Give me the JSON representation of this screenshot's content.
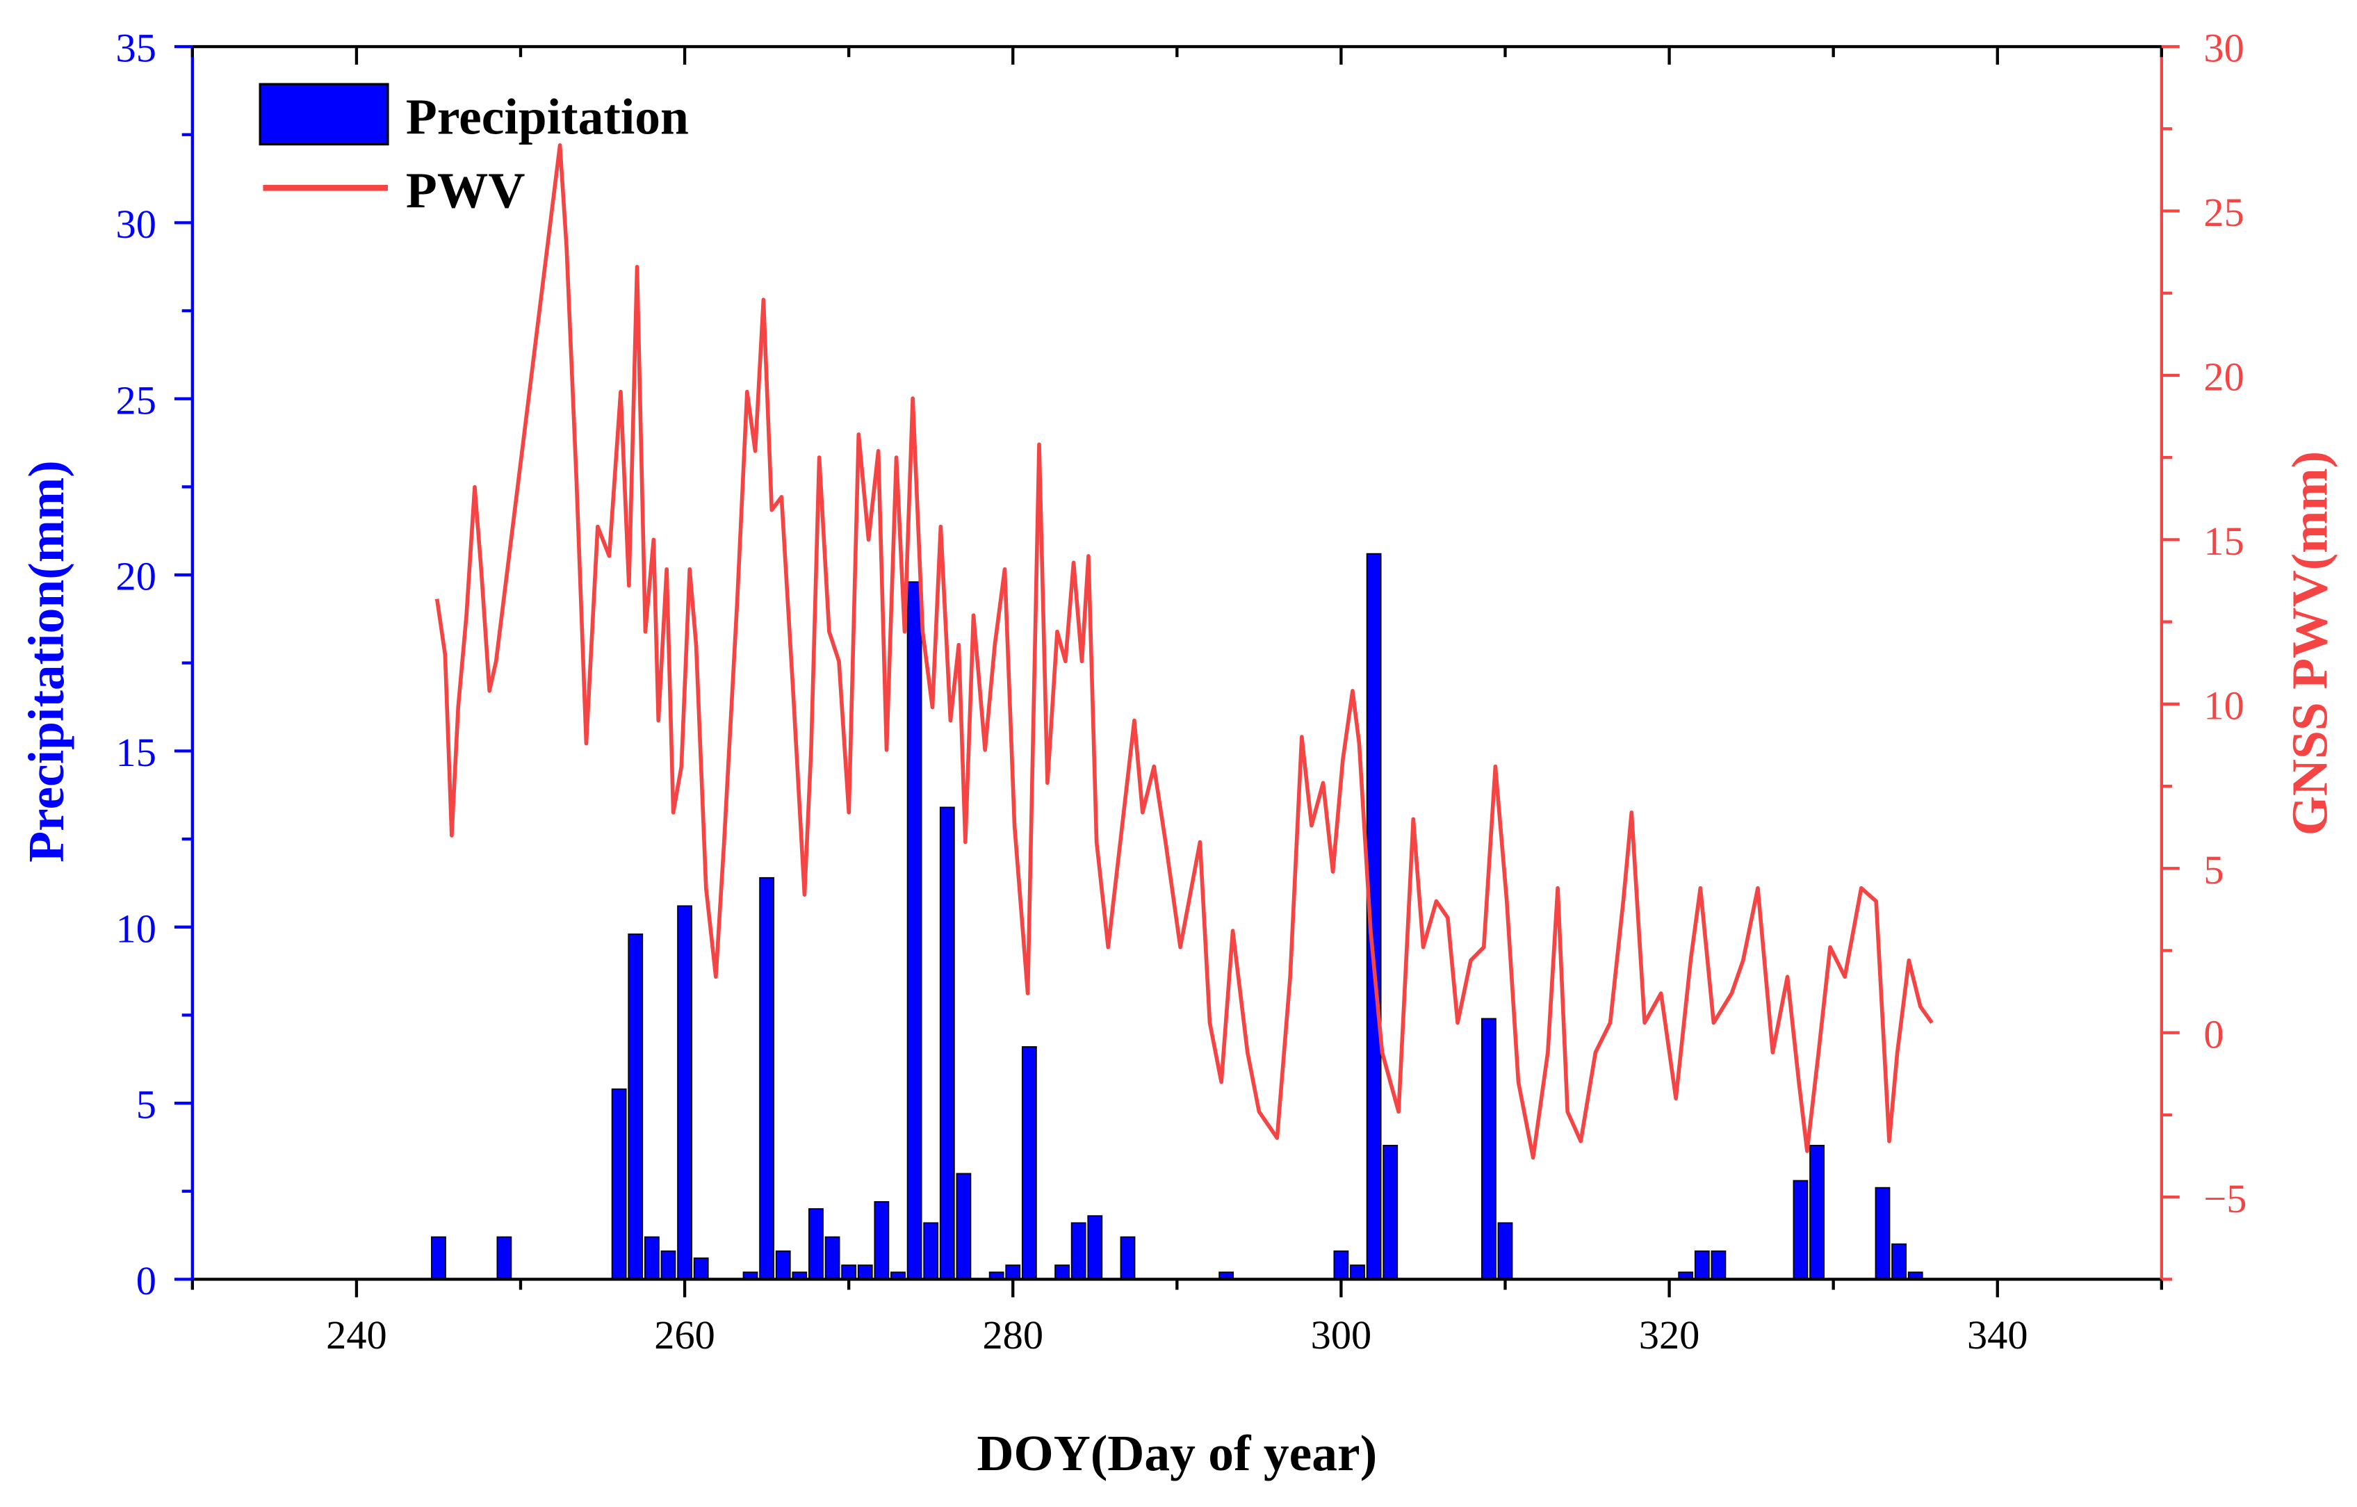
{
  "chart_data": {
    "type": "bar+line",
    "xlabel": "DOY(Day of year)",
    "ylabel_left": "Precipitation(mm)",
    "ylabel_right": "GNSS PWV(mm)",
    "xlim": [
      230,
      350
    ],
    "ylim_left": [
      0,
      35
    ],
    "ylim_right": [
      -7.5,
      30
    ],
    "x_ticks": [
      240,
      260,
      280,
      300,
      320,
      340
    ],
    "y_left_ticks": [
      0,
      5,
      10,
      15,
      20,
      25,
      30,
      35
    ],
    "y_right_ticks": [
      -5,
      0,
      5,
      10,
      15,
      20,
      25,
      30
    ],
    "grid": false,
    "legend": {
      "position": "top-left",
      "entries": [
        "Precipitation",
        "PWV"
      ]
    },
    "colors": {
      "precipitation": "#0000ff",
      "pwv": "#f44444",
      "left_axis": "#0000ff",
      "right_axis": "#f44444"
    },
    "series": [
      {
        "name": "Precipitation",
        "type": "bar",
        "axis": "left",
        "x": [
          245,
          249,
          256,
          257,
          258,
          259,
          260,
          261,
          264,
          265,
          266,
          267,
          268,
          269,
          270,
          271,
          272,
          273,
          274,
          275,
          276,
          277,
          279,
          280,
          281,
          283,
          284,
          285,
          287,
          293,
          300,
          301,
          302,
          303,
          309,
          310,
          321,
          322,
          323,
          328,
          329,
          333,
          334,
          335
        ],
        "values": [
          1.2,
          1.2,
          5.4,
          9.8,
          1.2,
          0.8,
          10.6,
          0.6,
          0.2,
          11.4,
          0.8,
          0.2,
          2.0,
          1.2,
          0.4,
          0.4,
          2.2,
          0.2,
          19.8,
          1.6,
          13.4,
          3.0,
          0.2,
          0.4,
          6.6,
          0.4,
          1.6,
          1.8,
          1.2,
          0.2,
          0.8,
          0.4,
          20.6,
          3.8,
          7.4,
          1.6,
          0.2,
          0.8,
          0.8,
          2.8,
          3.8,
          2.6,
          1.0,
          0.2
        ]
      },
      {
        "name": "PWV",
        "type": "line",
        "axis": "right",
        "x": [
          244.9,
          245.4,
          245.8,
          246.2,
          246.7,
          247.2,
          247.6,
          248.1,
          248.5,
          252.4,
          252.8,
          253.4,
          254.0,
          254.7,
          255.4,
          256.1,
          256.6,
          257.1,
          257.6,
          258.1,
          258.4,
          258.9,
          259.3,
          259.8,
          260.3,
          260.7,
          261.3,
          261.9,
          262.4,
          263.2,
          263.8,
          264.3,
          264.8,
          265.3,
          265.9,
          266.6,
          267.3,
          267.7,
          268.2,
          268.8,
          269.4,
          270.0,
          270.6,
          271.2,
          271.8,
          272.3,
          272.9,
          273.4,
          273.9,
          274.5,
          275.1,
          275.6,
          276.2,
          276.7,
          277.1,
          277.6,
          278.3,
          278.9,
          279.5,
          280.1,
          280.9,
          281.6,
          282.1,
          282.7,
          283.2,
          283.7,
          284.2,
          284.6,
          285.1,
          285.8,
          287.4,
          287.9,
          288.6,
          289.3,
          290.2,
          291.4,
          292.0,
          292.7,
          293.4,
          294.3,
          295.0,
          296.1,
          296.9,
          297.6,
          298.2,
          298.9,
          299.5,
          300.1,
          300.7,
          301.1,
          301.8,
          302.5,
          303.5,
          304.4,
          305.0,
          305.8,
          306.5,
          307.1,
          307.9,
          308.7,
          309.4,
          310.1,
          310.8,
          311.7,
          312.6,
          313.2,
          313.8,
          314.6,
          315.5,
          316.4,
          317.2,
          317.7,
          318.5,
          319.5,
          320.4,
          321.3,
          321.9,
          322.7,
          323.8,
          324.5,
          325.4,
          326.3,
          327.2,
          327.9,
          328.4,
          329.1,
          329.8,
          330.7,
          331.7,
          332.6,
          333.4,
          333.9,
          334.6,
          335.3,
          336.0
        ],
        "values": [
          13.2,
          11.5,
          6.0,
          9.9,
          12.7,
          16.6,
          14.1,
          10.4,
          11.3,
          27.0,
          23.9,
          16.8,
          8.8,
          15.4,
          14.5,
          19.5,
          13.6,
          23.3,
          12.2,
          15.0,
          9.5,
          14.1,
          6.7,
          8.1,
          14.1,
          11.8,
          4.4,
          1.7,
          5.8,
          13.1,
          19.5,
          17.7,
          22.3,
          15.9,
          16.3,
          10.4,
          4.2,
          8.6,
          17.5,
          12.2,
          11.3,
          6.7,
          18.2,
          15.0,
          17.7,
          8.6,
          17.5,
          12.2,
          19.3,
          12.2,
          9.9,
          15.4,
          9.5,
          11.8,
          5.8,
          12.7,
          8.6,
          11.8,
          14.1,
          6.3,
          1.2,
          17.9,
          7.6,
          12.2,
          11.3,
          14.3,
          11.3,
          14.5,
          5.8,
          2.6,
          9.5,
          6.7,
          8.1,
          5.8,
          2.6,
          5.8,
          0.3,
          -1.5,
          3.1,
          -0.6,
          -2.4,
          -3.2,
          1.7,
          9.0,
          6.3,
          7.6,
          4.9,
          8.3,
          10.4,
          8.8,
          3.1,
          -0.6,
          -2.4,
          6.5,
          2.6,
          4.0,
          3.5,
          0.3,
          2.2,
          2.6,
          8.1,
          4.0,
          -1.5,
          -3.8,
          -0.6,
          4.4,
          -2.4,
          -3.3,
          -0.6,
          0.3,
          4.0,
          6.7,
          0.3,
          1.2,
          -2.0,
          2.2,
          4.4,
          0.3,
          1.2,
          2.2,
          4.4,
          -0.6,
          1.7,
          -1.5,
          -3.6,
          -0.6,
          2.6,
          1.7,
          4.4,
          4.0,
          -3.3,
          -0.6,
          2.2,
          0.8,
          0.3
        ]
      }
    ]
  }
}
